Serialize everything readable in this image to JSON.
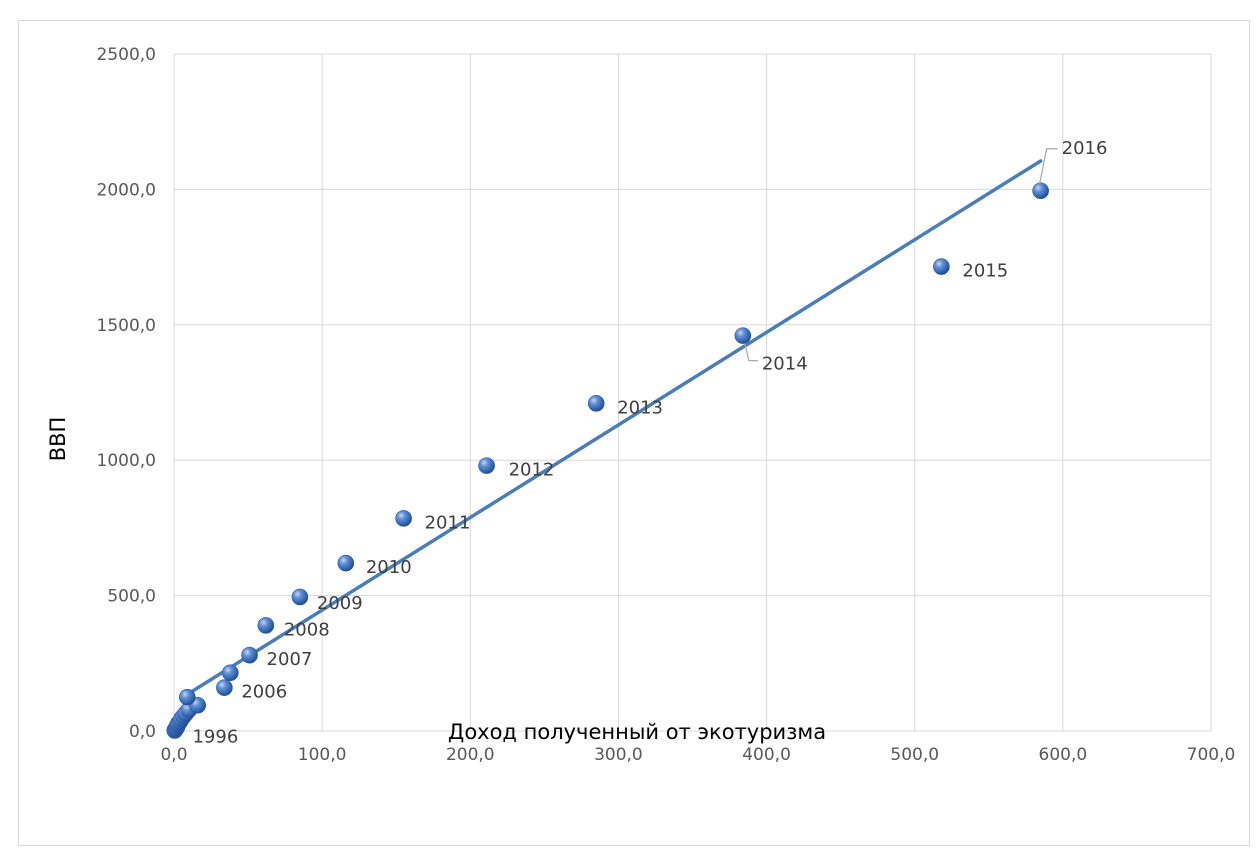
{
  "chart_data": {
    "type": "scatter",
    "title": "",
    "xlabel": "Доход полученный от экотуризма",
    "ylabel": "ВВП",
    "xlim": [
      0,
      700
    ],
    "ylim": [
      0,
      2500
    ],
    "xticks": [
      0,
      100,
      200,
      300,
      400,
      500,
      600,
      700
    ],
    "yticks": [
      0,
      500,
      1000,
      1500,
      2000,
      2500
    ],
    "xtick_labels": [
      "0,0",
      "100,0",
      "200,0",
      "300,0",
      "400,0",
      "500,0",
      "600,0",
      "700,0"
    ],
    "ytick_labels": [
      "0,0",
      "500,0",
      "1000,0",
      "1500,0",
      "2000,0",
      "2500,0"
    ],
    "grid": true,
    "legend": "none",
    "colors": {
      "marker": "#4472c4",
      "trendline": "#4a7ebb",
      "grid": "#d9d9d9"
    },
    "points": [
      {
        "x": 0.5,
        "y": 2,
        "label": ""
      },
      {
        "x": 1.0,
        "y": 6,
        "label": "1996"
      },
      {
        "x": 1.5,
        "y": 10,
        "label": ""
      },
      {
        "x": 2.0,
        "y": 15,
        "label": ""
      },
      {
        "x": 2.5,
        "y": 22,
        "label": ""
      },
      {
        "x": 3.0,
        "y": 28,
        "label": ""
      },
      {
        "x": 4.0,
        "y": 35,
        "label": ""
      },
      {
        "x": 5.0,
        "y": 45,
        "label": ""
      },
      {
        "x": 6.5,
        "y": 55,
        "label": ""
      },
      {
        "x": 8.0,
        "y": 65,
        "label": ""
      },
      {
        "x": 10.0,
        "y": 78,
        "label": ""
      },
      {
        "x": 16.0,
        "y": 95,
        "label": ""
      },
      {
        "x": 9.0,
        "y": 125,
        "label": ""
      },
      {
        "x": 34.0,
        "y": 160,
        "label": "2006"
      },
      {
        "x": 38.0,
        "y": 215,
        "label": ""
      },
      {
        "x": 51.0,
        "y": 280,
        "label": "2007"
      },
      {
        "x": 62.0,
        "y": 390,
        "label": "2008"
      },
      {
        "x": 85.0,
        "y": 495,
        "label": "2009"
      },
      {
        "x": 116.0,
        "y": 620,
        "label": "2010"
      },
      {
        "x": 155.0,
        "y": 785,
        "label": "2011"
      },
      {
        "x": 211.0,
        "y": 980,
        "label": "2012"
      },
      {
        "x": 285.0,
        "y": 1210,
        "label": "2013"
      },
      {
        "x": 384.0,
        "y": 1460,
        "label": "2014"
      },
      {
        "x": 518.0,
        "y": 1715,
        "label": "2015"
      },
      {
        "x": 585.0,
        "y": 1995,
        "label": "2016"
      }
    ],
    "trendline": {
      "type": "linear",
      "x": [
        6,
        585
      ],
      "y": [
        125,
        2105
      ]
    }
  }
}
